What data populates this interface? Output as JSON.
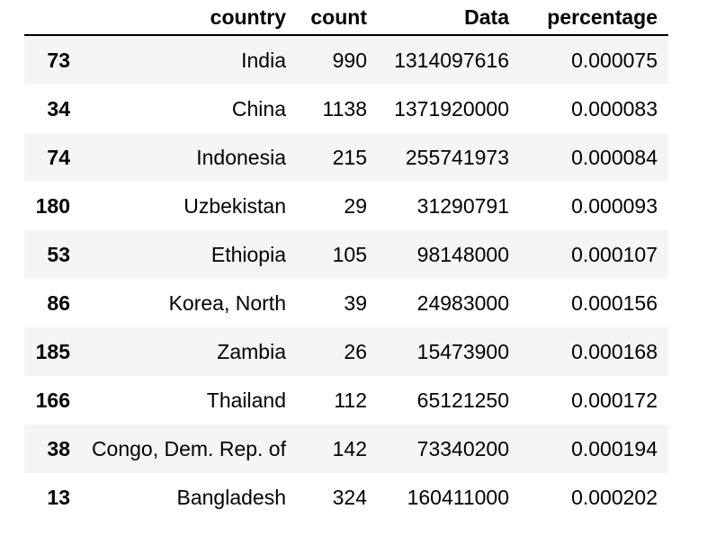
{
  "table": {
    "columns": {
      "index": "",
      "country": "country",
      "count": "count",
      "data": "Data",
      "percentage": "percentage"
    },
    "rows": [
      {
        "index": "73",
        "country": "India",
        "count": "990",
        "data": "1314097616",
        "percentage": "0.000075"
      },
      {
        "index": "34",
        "country": "China",
        "count": "1138",
        "data": "1371920000",
        "percentage": "0.000083"
      },
      {
        "index": "74",
        "country": "Indonesia",
        "count": "215",
        "data": "255741973",
        "percentage": "0.000084"
      },
      {
        "index": "180",
        "country": "Uzbekistan",
        "count": "29",
        "data": "31290791",
        "percentage": "0.000093"
      },
      {
        "index": "53",
        "country": "Ethiopia",
        "count": "105",
        "data": "98148000",
        "percentage": "0.000107"
      },
      {
        "index": "86",
        "country": "Korea, North",
        "count": "39",
        "data": "24983000",
        "percentage": "0.000156"
      },
      {
        "index": "185",
        "country": "Zambia",
        "count": "26",
        "data": "15473900",
        "percentage": "0.000168"
      },
      {
        "index": "166",
        "country": "Thailand",
        "count": "112",
        "data": "65121250",
        "percentage": "0.000172"
      },
      {
        "index": "38",
        "country": "Congo, Dem. Rep. of",
        "count": "142",
        "data": "73340200",
        "percentage": "0.000194"
      },
      {
        "index": "13",
        "country": "Bangladesh",
        "count": "324",
        "data": "160411000",
        "percentage": "0.000202"
      }
    ]
  }
}
